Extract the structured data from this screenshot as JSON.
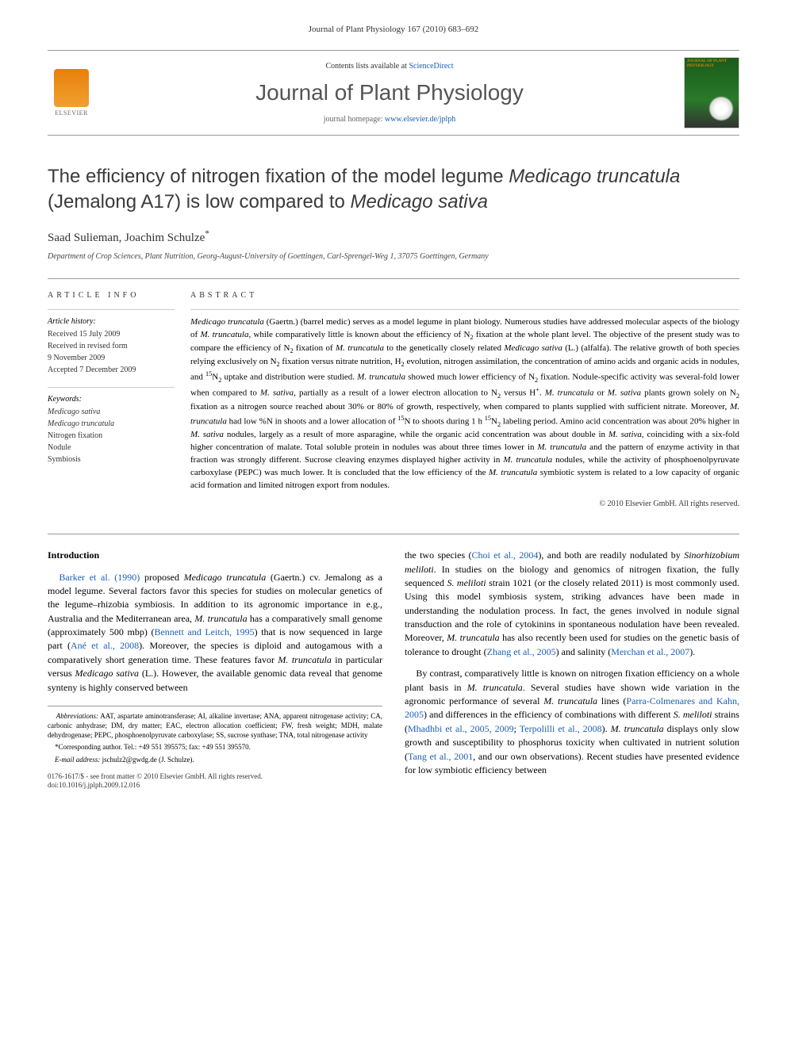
{
  "header": {
    "journal_ref": "Journal of Plant Physiology 167 (2010) 683–692",
    "contents_prefix": "Contents lists available at ",
    "contents_link": "ScienceDirect",
    "journal_title": "Journal of Plant Physiology",
    "homepage_prefix": "journal homepage: ",
    "homepage_link": "www.elsevier.de/jplph",
    "elsevier_label": "ELSEVIER",
    "cover_label": "JOURNAL OF PLANT PHYSIOLOGY"
  },
  "article": {
    "title_html": "The efficiency of nitrogen fixation of the model legume <span class=\"italic\">Medicago truncatula</span> (Jemalong A17) is low compared to <span class=\"italic\">Medicago sativa</span>",
    "authors": "Saad Sulieman, Joachim Schulze",
    "author_mark": "*",
    "affiliation": "Department of Crop Sciences, Plant Nutrition, Georg-August-University of Goettingen, Carl-Sprengel-Weg 1, 37075 Goettingen, Germany"
  },
  "info": {
    "heading": "article info",
    "history_label": "Article history:",
    "received": "Received 15 July 2009",
    "revised": "Received in revised form",
    "revised_date": "9 November 2009",
    "accepted": "Accepted 7 December 2009",
    "keywords_label": "Keywords:",
    "keywords": [
      "Medicago sativa",
      "Medicago truncatula",
      "Nitrogen fixation",
      "Nodule",
      "Symbiosis"
    ]
  },
  "abstract": {
    "heading": "abstract",
    "text_html": "<span class=\"italic\">Medicago truncatula</span> (Gaertn.) (barrel medic) serves as a model legume in plant biology. Numerous studies have addressed molecular aspects of the biology of <span class=\"italic\">M. truncatula</span>, while comparatively little is known about the efficiency of N<sub>2</sub> fixation at the whole plant level. The objective of the present study was to compare the efficiency of N<sub>2</sub> fixation of <span class=\"italic\">M. truncatula</span> to the genetically closely related <span class=\"italic\">Medicago sativa</span> (L.) (alfalfa). The relative growth of both species relying exclusively on N<sub>2</sub> fixation versus nitrate nutrition, H<sub>2</sub> evolution, nitrogen assimilation, the concentration of amino acids and organic acids in nodules, and <sup>15</sup>N<sub>2</sub> uptake and distribution were studied. <span class=\"italic\">M. truncatula</span> showed much lower efficiency of N<sub>2</sub> fixation. Nodule-specific activity was several-fold lower when compared to <span class=\"italic\">M. sativa</span>, partially as a result of a lower electron allocation to N<sub>2</sub> versus H<sup>+</sup>. <span class=\"italic\">M. truncatula</span> or <span class=\"italic\">M. sativa</span> plants grown solely on N<sub>2</sub> fixation as a nitrogen source reached about 30% or 80% of growth, respectively, when compared to plants supplied with sufficient nitrate. Moreover, <span class=\"italic\">M. truncatula</span> had low %N in shoots and a lower allocation of <sup>15</sup>N to shoots during 1 h <sup>15</sup>N<sub>2</sub> labeling period. Amino acid concentration was about 20% higher in <span class=\"italic\">M. sativa</span> nodules, largely as a result of more asparagine, while the organic acid concentration was about double in <span class=\"italic\">M. sativa</span>, coinciding with a six-fold higher concentration of malate. Total soluble protein in nodules was about three times lower in <span class=\"italic\">M. truncatula</span> and the pattern of enzyme activity in that fraction was strongly different. Sucrose cleaving enzymes displayed higher activity in <span class=\"italic\">M. truncatula</span> nodules, while the activity of phosphoenolpyruvate carboxylase (PEPC) was much lower. It is concluded that the low efficiency of the <span class=\"italic\">M. truncatula</span> symbiotic system is related to a low capacity of organic acid formation and limited nitrogen export from nodules.",
    "copyright": "© 2010 Elsevier GmbH. All rights reserved."
  },
  "intro": {
    "heading": "Introduction",
    "p1_html": "<span class=\"cite\">Barker et al. (1990)</span> proposed <span class=\"italic\">Medicago truncatula</span> (Gaertn.) cv. Jemalong as a model legume. Several factors favor this species for studies on molecular genetics of the legume–rhizobia symbiosis. In addition to its agronomic importance in e.g., Australia and the Mediterranean area, <span class=\"italic\">M. truncatula</span> has a comparatively small genome (approximately 500 mbp) (<span class=\"cite\">Bennett and Leitch, 1995</span>) that is now sequenced in large part (<span class=\"cite\">Ané et al., 2008</span>). Moreover, the species is diploid and autogamous with a comparatively short generation time. These features favor <span class=\"italic\">M. truncatula</span> in particular versus <span class=\"italic\">Medicago sativa</span> (L.). However, the available genomic data reveal that genome synteny is highly conserved between",
    "p2_html": "the two species (<span class=\"cite\">Choi et al., 2004</span>), and both are readily nodulated by <span class=\"italic\">Sinorhizobium meliloti</span>. In studies on the biology and genomics of nitrogen fixation, the fully sequenced <span class=\"italic\">S. meliloti</span> strain 1021 (or the closely related 2011) is most commonly used. Using this model symbiosis system, striking advances have been made in understanding the nodulation process. In fact, the genes involved in nodule signal transduction and the role of cytokinins in spontaneous nodulation have been revealed. Moreover, <span class=\"italic\">M. truncatula</span> has also recently been used for studies on the genetic basis of tolerance to drought (<span class=\"cite\">Zhang et al., 2005</span>) and salinity (<span class=\"cite\">Merchan et al., 2007</span>).",
    "p3_html": "By contrast, comparatively little is known on nitrogen fixation efficiency on a whole plant basis in <span class=\"italic\">M. truncatula</span>. Several studies have shown wide variation in the agronomic performance of several <span class=\"italic\">M. truncatula</span> lines (<span class=\"cite\">Parra-Colmenares and Kahn, 2005</span>) and differences in the efficiency of combinations with different <span class=\"italic\">S. meliloti</span> strains (<span class=\"cite\">Mhadhbi et al., 2005, 2009</span>; <span class=\"cite\">Terpolilli et al., 2008</span>). <span class=\"italic\">M. truncatula</span> displays only slow growth and susceptibility to phosphorus toxicity when cultivated in nutrient solution (<span class=\"cite\">Tang et al., 2001</span>, and our own observations). Recent studies have presented evidence for low symbiotic efficiency between"
  },
  "footnotes": {
    "abbrev_label": "Abbreviations:",
    "abbrev_text": " AAT, aspartate aminotransferase; AI, alkaline invertase; ANA, apparent nitrogenase activity; CA, carbonic anhydrase; DM, dry matter; EAC, electron allocation coefficient; FW, fresh weight; MDH, malate dehydrogenase; PEPC, phosphoenolpyruvate carboxylase; SS, sucrose synthase; TNA, total nitrogenase activity",
    "corr_label": "*Corresponding author. Tel.: +49 551 395575; fax: +49 551 395570.",
    "email_label": "E-mail address:",
    "email": " jschulz2@gwdg.de (J. Schulze)."
  },
  "footer": {
    "line1": "0176-1617/$ - see front matter © 2010 Elsevier GmbH. All rights reserved.",
    "line2": "doi:10.1016/j.jplph.2009.12.016"
  },
  "colors": {
    "link": "#1a5fb4",
    "elsevier_orange": "#e8800a",
    "text": "#000000",
    "rule": "#999999"
  }
}
